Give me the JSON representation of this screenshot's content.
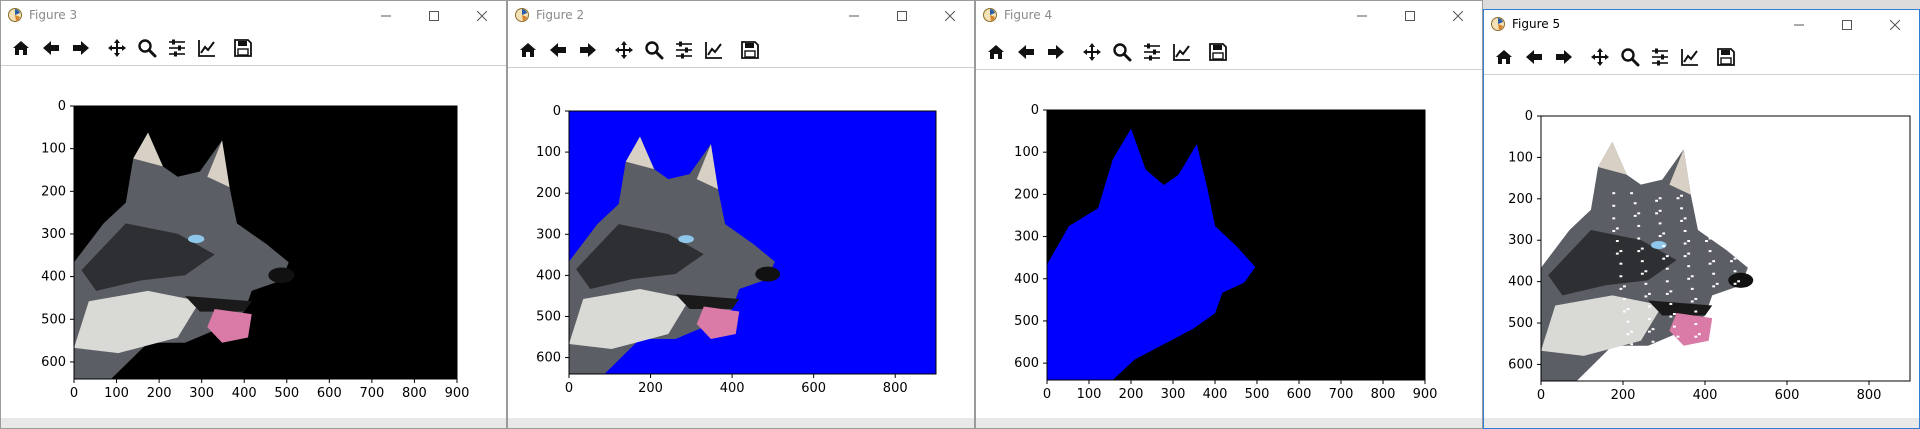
{
  "windows": [
    {
      "title": "Figure 3",
      "x_ticks": [
        "0",
        "100",
        "200",
        "300",
        "400",
        "500",
        "600",
        "700",
        "800",
        "900"
      ],
      "y_ticks": [
        "0",
        "100",
        "200",
        "300",
        "400",
        "500",
        "600"
      ],
      "background": "#000000",
      "dog_style": "normal"
    },
    {
      "title": "Figure 2",
      "x_ticks": [
        "0",
        "200",
        "400",
        "600",
        "800"
      ],
      "y_ticks": [
        "0",
        "100",
        "200",
        "300",
        "400",
        "500",
        "600"
      ],
      "background": "#0000ff",
      "dog_style": "normal"
    },
    {
      "title": "Figure 4",
      "x_ticks": [
        "0",
        "100",
        "200",
        "300",
        "400",
        "500",
        "600",
        "700",
        "800",
        "900"
      ],
      "y_ticks": [
        "0",
        "100",
        "200",
        "300",
        "400",
        "500",
        "600"
      ],
      "background": "#000000",
      "dog_style": "blue-mask"
    },
    {
      "title": "Figure 5",
      "x_ticks": [
        "0",
        "200",
        "400",
        "600",
        "800"
      ],
      "y_ticks": [
        "0",
        "100",
        "200",
        "300",
        "400",
        "500",
        "600"
      ],
      "background": "#ffffff",
      "dog_style": "speckled"
    }
  ],
  "toolbar_icons": [
    "home-icon",
    "back-icon",
    "forward-icon",
    "pan-icon",
    "zoom-icon",
    "configure-subplots-icon",
    "edit-axis-icon",
    "save-icon"
  ],
  "window_controls": [
    "minimize-icon",
    "maximize-icon",
    "close-icon"
  ],
  "colors": {
    "mask_blue": "#0000ff",
    "tongue_pink": "#d97aa7",
    "eye_blue": "#8ec7ea"
  }
}
